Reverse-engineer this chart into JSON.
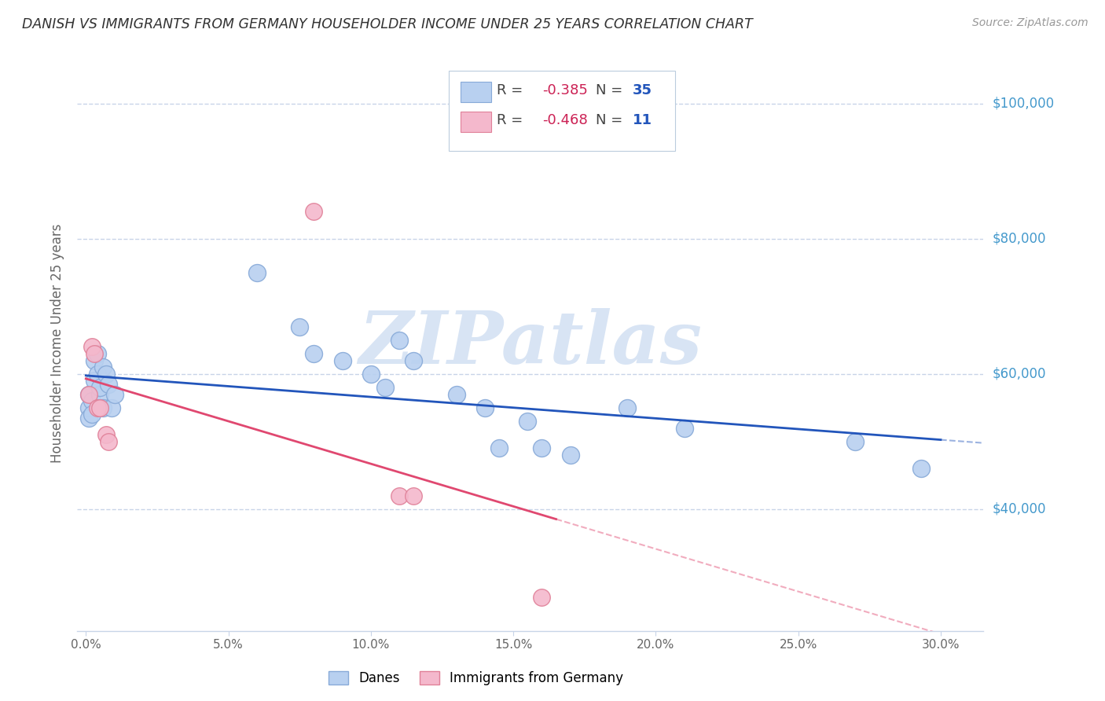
{
  "title": "DANISH VS IMMIGRANTS FROM GERMANY HOUSEHOLDER INCOME UNDER 25 YEARS CORRELATION CHART",
  "source": "Source: ZipAtlas.com",
  "ylabel": "Householder Income Under 25 years",
  "xlabel_ticks": [
    "0.0%",
    "5.0%",
    "10.0%",
    "15.0%",
    "20.0%",
    "25.0%",
    "30.0%"
  ],
  "xlabel_vals": [
    0.0,
    0.05,
    0.1,
    0.15,
    0.2,
    0.25,
    0.3
  ],
  "ylim": [
    22000,
    107000
  ],
  "xlim": [
    -0.003,
    0.315
  ],
  "ytick_labels": [
    "$40,000",
    "$60,000",
    "$80,000",
    "$100,000"
  ],
  "ytick_vals": [
    40000,
    60000,
    80000,
    100000
  ],
  "background_color": "#ffffff",
  "grid_color": "#c8d4e8",
  "danes_color": "#b8d0f0",
  "danes_edge_color": "#88aad8",
  "germany_color": "#f4b8cc",
  "germany_edge_color": "#e08098",
  "danes_line_color": "#2255bb",
  "germany_line_color": "#e04870",
  "watermark_color": "#d8e4f4",
  "danes_points": [
    [
      0.001,
      57000
    ],
    [
      0.001,
      55000
    ],
    [
      0.001,
      53500
    ],
    [
      0.002,
      56000
    ],
    [
      0.002,
      54000
    ],
    [
      0.003,
      62000
    ],
    [
      0.003,
      59000
    ],
    [
      0.004,
      60000
    ],
    [
      0.004,
      63000
    ],
    [
      0.005,
      57000
    ],
    [
      0.005,
      58000
    ],
    [
      0.006,
      61000
    ],
    [
      0.006,
      55000
    ],
    [
      0.007,
      60000
    ],
    [
      0.008,
      58500
    ],
    [
      0.009,
      55000
    ],
    [
      0.01,
      57000
    ],
    [
      0.06,
      75000
    ],
    [
      0.075,
      67000
    ],
    [
      0.08,
      63000
    ],
    [
      0.09,
      62000
    ],
    [
      0.1,
      60000
    ],
    [
      0.105,
      58000
    ],
    [
      0.11,
      65000
    ],
    [
      0.115,
      62000
    ],
    [
      0.13,
      57000
    ],
    [
      0.14,
      55000
    ],
    [
      0.145,
      49000
    ],
    [
      0.155,
      53000
    ],
    [
      0.16,
      49000
    ],
    [
      0.17,
      48000
    ],
    [
      0.19,
      55000
    ],
    [
      0.21,
      52000
    ],
    [
      0.27,
      50000
    ],
    [
      0.293,
      46000
    ]
  ],
  "germany_points": [
    [
      0.001,
      57000
    ],
    [
      0.002,
      64000
    ],
    [
      0.003,
      63000
    ],
    [
      0.004,
      55000
    ],
    [
      0.005,
      55000
    ],
    [
      0.007,
      51000
    ],
    [
      0.008,
      50000
    ],
    [
      0.08,
      84000
    ],
    [
      0.11,
      42000
    ],
    [
      0.115,
      42000
    ],
    [
      0.16,
      27000
    ]
  ],
  "legend_R1": "-0.385",
  "legend_N1": "35",
  "legend_R2": "-0.468",
  "legend_N2": "11"
}
